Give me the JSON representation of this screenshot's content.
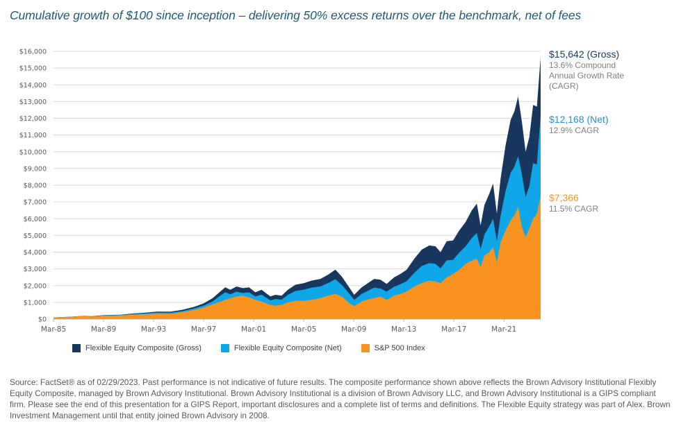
{
  "title": "Cumulative growth of $100 since inception – delivering 50% excess returns over the benchmark, net of fees",
  "chart_data": {
    "type": "area",
    "title": "Cumulative growth of $100 since inception – delivering 50% excess returns over the benchmark, net of fees",
    "xlabel": "",
    "ylabel": "",
    "ylim": [
      0,
      16000
    ],
    "xlim": [
      1985.17,
      2024.1
    ],
    "grid": true,
    "legend_position": "bottom",
    "y_ticks": [
      "$0",
      "$1,000",
      "$2,000",
      "$3,000",
      "$4,000",
      "$5,000",
      "$6,000",
      "$7,000",
      "$8,000",
      "$9,000",
      "$10,000",
      "$11,000",
      "$12,000",
      "$13,000",
      "$14,000",
      "$15,000",
      "$16,000"
    ],
    "y_tick_values": [
      0,
      1000,
      2000,
      3000,
      4000,
      5000,
      6000,
      7000,
      8000,
      9000,
      10000,
      11000,
      12000,
      13000,
      14000,
      15000,
      16000
    ],
    "x_ticks": [
      "Mar-85",
      "Mar-89",
      "Mar-93",
      "Mar-97",
      "Mar-01",
      "Mar-05",
      "Mar-09",
      "Mar-13",
      "Mar-17",
      "Mar-21"
    ],
    "x_tick_values": [
      1985.17,
      1989.17,
      1993.17,
      1997.17,
      2001.17,
      2005.17,
      2009.17,
      2013.17,
      2017.17,
      2021.17
    ],
    "series": [
      {
        "name": "Flexible Equity Composite (Gross)",
        "color": "#17375e",
        "points": [
          [
            1985.17,
            100
          ],
          [
            1986.5,
            140
          ],
          [
            1987.6,
            200
          ],
          [
            1988.2,
            170
          ],
          [
            1989.2,
            240
          ],
          [
            1990.5,
            260
          ],
          [
            1991.5,
            330
          ],
          [
            1992.5,
            380
          ],
          [
            1993.5,
            450
          ],
          [
            1994.5,
            440
          ],
          [
            1995.5,
            560
          ],
          [
            1996.5,
            750
          ],
          [
            1997.2,
            950
          ],
          [
            1997.9,
            1250
          ],
          [
            1998.5,
            1650
          ],
          [
            1998.9,
            1900
          ],
          [
            1999.3,
            1750
          ],
          [
            1999.8,
            1950
          ],
          [
            2000.3,
            1850
          ],
          [
            2000.8,
            1900
          ],
          [
            2001.3,
            1600
          ],
          [
            2001.8,
            1750
          ],
          [
            2002.5,
            1350
          ],
          [
            2002.9,
            1450
          ],
          [
            2003.4,
            1400
          ],
          [
            2003.9,
            1750
          ],
          [
            2004.5,
            2050
          ],
          [
            2005.2,
            2150
          ],
          [
            2005.8,
            2300
          ],
          [
            2006.5,
            2400
          ],
          [
            2007.1,
            2650
          ],
          [
            2007.7,
            2950
          ],
          [
            2008.2,
            2550
          ],
          [
            2008.8,
            1900
          ],
          [
            2009.2,
            1450
          ],
          [
            2009.8,
            1900
          ],
          [
            2010.4,
            2200
          ],
          [
            2010.8,
            2400
          ],
          [
            2011.3,
            2350
          ],
          [
            2011.8,
            2100
          ],
          [
            2012.4,
            2500
          ],
          [
            2012.9,
            2700
          ],
          [
            2013.4,
            2950
          ],
          [
            2014.0,
            3600
          ],
          [
            2014.6,
            4150
          ],
          [
            2015.2,
            4400
          ],
          [
            2015.7,
            4350
          ],
          [
            2016.1,
            4000
          ],
          [
            2016.6,
            4650
          ],
          [
            2017.1,
            4700
          ],
          [
            2017.6,
            5300
          ],
          [
            2018.1,
            5800
          ],
          [
            2018.6,
            6500
          ],
          [
            2019.0,
            6900
          ],
          [
            2019.3,
            5600
          ],
          [
            2019.6,
            6800
          ],
          [
            2020.0,
            7500
          ],
          [
            2020.3,
            8100
          ],
          [
            2020.6,
            6300
          ],
          [
            2020.9,
            8400
          ],
          [
            2021.3,
            10400
          ],
          [
            2021.7,
            11900
          ],
          [
            2022.0,
            12400
          ],
          [
            2022.3,
            13300
          ],
          [
            2022.6,
            11800
          ],
          [
            2022.9,
            10000
          ],
          [
            2023.2,
            10900
          ],
          [
            2023.5,
            12800
          ],
          [
            2023.8,
            12700
          ],
          [
            2024.1,
            15642
          ]
        ]
      },
      {
        "name": "Flexible Equity Composite (Net)",
        "color": "#0fa7e8",
        "points": [
          [
            1985.17,
            100
          ],
          [
            1986.5,
            135
          ],
          [
            1987.6,
            190
          ],
          [
            1988.2,
            165
          ],
          [
            1989.2,
            225
          ],
          [
            1990.5,
            245
          ],
          [
            1991.5,
            300
          ],
          [
            1992.5,
            340
          ],
          [
            1993.5,
            395
          ],
          [
            1994.5,
            385
          ],
          [
            1995.5,
            480
          ],
          [
            1996.5,
            650
          ],
          [
            1997.2,
            820
          ],
          [
            1997.9,
            1070
          ],
          [
            1998.5,
            1400
          ],
          [
            1998.9,
            1600
          ],
          [
            1999.3,
            1480
          ],
          [
            1999.8,
            1640
          ],
          [
            2000.3,
            1560
          ],
          [
            2000.8,
            1600
          ],
          [
            2001.3,
            1350
          ],
          [
            2001.8,
            1460
          ],
          [
            2002.5,
            1120
          ],
          [
            2002.9,
            1200
          ],
          [
            2003.4,
            1160
          ],
          [
            2003.9,
            1450
          ],
          [
            2004.5,
            1680
          ],
          [
            2005.2,
            1760
          ],
          [
            2005.8,
            1880
          ],
          [
            2006.5,
            1950
          ],
          [
            2007.1,
            2150
          ],
          [
            2007.7,
            2380
          ],
          [
            2008.2,
            2050
          ],
          [
            2008.8,
            1520
          ],
          [
            2009.2,
            1150
          ],
          [
            2009.8,
            1500
          ],
          [
            2010.4,
            1730
          ],
          [
            2010.8,
            1880
          ],
          [
            2011.3,
            1830
          ],
          [
            2011.8,
            1640
          ],
          [
            2012.4,
            1940
          ],
          [
            2012.9,
            2080
          ],
          [
            2013.4,
            2270
          ],
          [
            2014.0,
            2760
          ],
          [
            2014.6,
            3170
          ],
          [
            2015.2,
            3350
          ],
          [
            2015.7,
            3300
          ],
          [
            2016.1,
            3030
          ],
          [
            2016.6,
            3510
          ],
          [
            2017.1,
            3540
          ],
          [
            2017.6,
            3980
          ],
          [
            2018.1,
            4340
          ],
          [
            2018.6,
            4850
          ],
          [
            2019.0,
            5140
          ],
          [
            2019.3,
            4160
          ],
          [
            2019.6,
            5040
          ],
          [
            2020.0,
            5550
          ],
          [
            2020.3,
            5990
          ],
          [
            2020.6,
            4650
          ],
          [
            2020.9,
            6190
          ],
          [
            2021.3,
            7650
          ],
          [
            2021.7,
            8740
          ],
          [
            2022.0,
            9100
          ],
          [
            2022.3,
            9740
          ],
          [
            2022.6,
            8630
          ],
          [
            2022.9,
            7300
          ],
          [
            2023.2,
            7950
          ],
          [
            2023.5,
            9320
          ],
          [
            2023.8,
            9240
          ],
          [
            2024.1,
            12168
          ]
        ]
      },
      {
        "name": "S&P 500 Index",
        "color": "#f7931e",
        "points": [
          [
            1985.17,
            100
          ],
          [
            1986.5,
            130
          ],
          [
            1987.6,
            190
          ],
          [
            1988.2,
            150
          ],
          [
            1989.2,
            200
          ],
          [
            1990.5,
            210
          ],
          [
            1991.5,
            260
          ],
          [
            1992.5,
            290
          ],
          [
            1993.5,
            320
          ],
          [
            1994.5,
            320
          ],
          [
            1995.5,
            420
          ],
          [
            1996.5,
            560
          ],
          [
            1997.2,
            700
          ],
          [
            1997.9,
            880
          ],
          [
            1998.5,
            1050
          ],
          [
            1998.9,
            1150
          ],
          [
            1999.3,
            1250
          ],
          [
            1999.8,
            1350
          ],
          [
            2000.3,
            1400
          ],
          [
            2000.8,
            1300
          ],
          [
            2001.3,
            1150
          ],
          [
            2001.8,
            1050
          ],
          [
            2002.5,
            850
          ],
          [
            2002.9,
            800
          ],
          [
            2003.4,
            850
          ],
          [
            2003.9,
            1000
          ],
          [
            2004.5,
            1080
          ],
          [
            2005.2,
            1100
          ],
          [
            2005.8,
            1150
          ],
          [
            2006.5,
            1250
          ],
          [
            2007.1,
            1400
          ],
          [
            2007.7,
            1500
          ],
          [
            2008.2,
            1350
          ],
          [
            2008.8,
            950
          ],
          [
            2009.2,
            780
          ],
          [
            2009.8,
            1050
          ],
          [
            2010.4,
            1200
          ],
          [
            2010.8,
            1250
          ],
          [
            2011.3,
            1350
          ],
          [
            2011.8,
            1150
          ],
          [
            2012.4,
            1400
          ],
          [
            2012.9,
            1500
          ],
          [
            2013.4,
            1650
          ],
          [
            2014.0,
            1950
          ],
          [
            2014.6,
            2150
          ],
          [
            2015.2,
            2300
          ],
          [
            2015.7,
            2250
          ],
          [
            2016.1,
            2150
          ],
          [
            2016.6,
            2500
          ],
          [
            2017.1,
            2700
          ],
          [
            2017.6,
            2950
          ],
          [
            2018.1,
            3300
          ],
          [
            2018.6,
            3500
          ],
          [
            2019.0,
            3600
          ],
          [
            2019.3,
            3100
          ],
          [
            2019.6,
            3800
          ],
          [
            2020.0,
            4000
          ],
          [
            2020.3,
            4300
          ],
          [
            2020.6,
            3400
          ],
          [
            2020.9,
            4600
          ],
          [
            2021.3,
            5300
          ],
          [
            2021.7,
            5900
          ],
          [
            2022.0,
            6200
          ],
          [
            2022.3,
            6700
          ],
          [
            2022.6,
            5500
          ],
          [
            2022.9,
            4900
          ],
          [
            2023.2,
            5400
          ],
          [
            2023.5,
            6000
          ],
          [
            2023.8,
            6300
          ],
          [
            2024.1,
            7366
          ]
        ]
      }
    ],
    "annotations": [
      {
        "series": "Flexible Equity Composite (Gross)",
        "value": "$15,642 (Gross)",
        "text": [
          "13.6% Compound",
          "Annual Growth Rate",
          "(CAGR)"
        ]
      },
      {
        "series": "Flexible Equity Composite (Net)",
        "value": "$12,168 (Net)",
        "text": [
          "12.9% CAGR"
        ]
      },
      {
        "series": "S&P 500 Index",
        "value": "$7,366",
        "text": [
          "11.5% CAGR"
        ]
      }
    ],
    "legend": [
      "Flexible Equity Composite (Gross)",
      "Flexible Equity Composite (Net)",
      "S&P 500 Index"
    ]
  },
  "colors": {
    "gross": "#17375e",
    "net": "#0fa7e8",
    "sp500": "#f7931e",
    "grid": "#d9d9d9",
    "title": "#1d5a78"
  },
  "footnote": "Source: FactSet® as of 02/29/2023. Past performance is not indicative of future results. The composite performance shown above reflects the Brown Advisory Institutional Flexibly Equity Composite, managed by Brown Advisory Institutional. Brown Advisory Institutional is a division of Brown Advisory LLC, and Brown Advisory Institutional is a GIPS compliant firm. Please see the end of this presentation for a GIPS Report, important disclosures and a complete list of terms and definitions. The Flexible Equity strategy was part of Alex. Brown Investment Management until that entity joined Brown Advisory in 2008."
}
